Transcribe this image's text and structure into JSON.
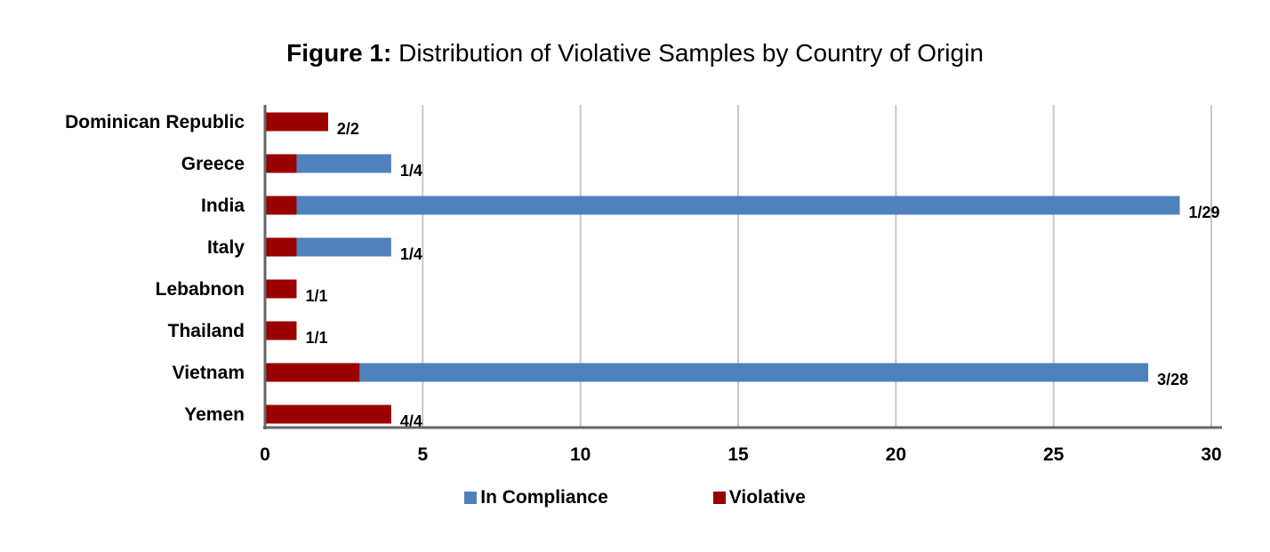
{
  "chart_data": {
    "type": "bar",
    "orientation": "horizontal",
    "stacked": true,
    "title_prefix": "Figure 1:",
    "title": "Distribution of Violative Samples by Country of Origin",
    "categories": [
      "Dominican Republic",
      "Greece",
      "India",
      "Italy",
      "Lebabnon",
      "Thailand",
      "Vietnam",
      "Yemen"
    ],
    "series": [
      {
        "name": "Violative",
        "color": "#990000",
        "values": [
          2,
          1,
          1,
          1,
          1,
          1,
          3,
          4
        ]
      },
      {
        "name": "In Compliance",
        "color": "#4F81BD",
        "values": [
          0,
          3,
          28,
          3,
          0,
          0,
          25,
          0
        ]
      }
    ],
    "data_labels": [
      "2/2",
      "1/4",
      "1/29",
      "1/4",
      "1/1",
      "1/1",
      "3/28",
      "4/4"
    ],
    "xlim": [
      0,
      30
    ],
    "xticks": [
      "0",
      "5",
      "10",
      "15",
      "20",
      "25",
      "30"
    ],
    "grid": true,
    "legend": {
      "placement": "bottom",
      "order": [
        "In Compliance",
        "Violative"
      ]
    }
  }
}
